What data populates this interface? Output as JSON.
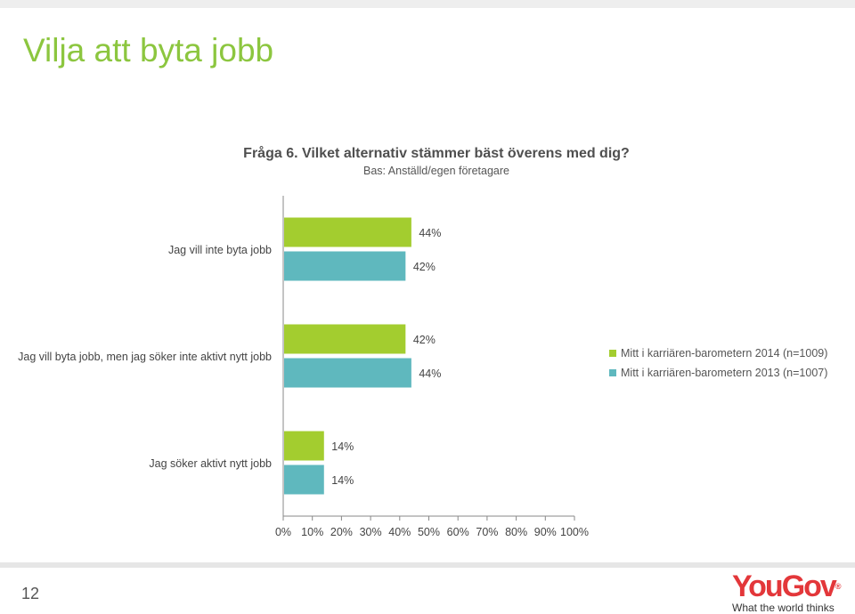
{
  "page": {
    "title": "Vilja att byta jobb",
    "page_number": "12"
  },
  "chart_data": {
    "type": "bar",
    "orientation": "horizontal",
    "title": "Fråga 6. Vilket alternativ stämmer bäst överens med dig?",
    "subtitle": "Bas: Anställd/egen företagare",
    "categories": [
      "Jag vill inte byta jobb",
      "Jag vill byta jobb, men jag söker inte aktivt nytt jobb",
      "Jag söker aktivt nytt jobb"
    ],
    "series": [
      {
        "name": "Mitt i karriären-barometern 2014 (n=1009)",
        "color": "#a3cd2f",
        "values": [
          44,
          42,
          14
        ]
      },
      {
        "name": "Mitt i karriären-barometern 2013 (n=1007)",
        "color": "#5fb8be",
        "values": [
          42,
          44,
          14
        ]
      }
    ],
    "value_labels": [
      [
        "44%",
        "42%",
        "14%"
      ],
      [
        "42%",
        "44%",
        "14%"
      ]
    ],
    "xlim": [
      0,
      100
    ],
    "xticks": [
      "0%",
      "10%",
      "20%",
      "30%",
      "40%",
      "50%",
      "60%",
      "70%",
      "80%",
      "90%",
      "100%"
    ],
    "legend_position": "right",
    "grid": false
  },
  "logo": {
    "brand": "YouGov",
    "registered": "®",
    "tagline": "What the world thinks"
  }
}
